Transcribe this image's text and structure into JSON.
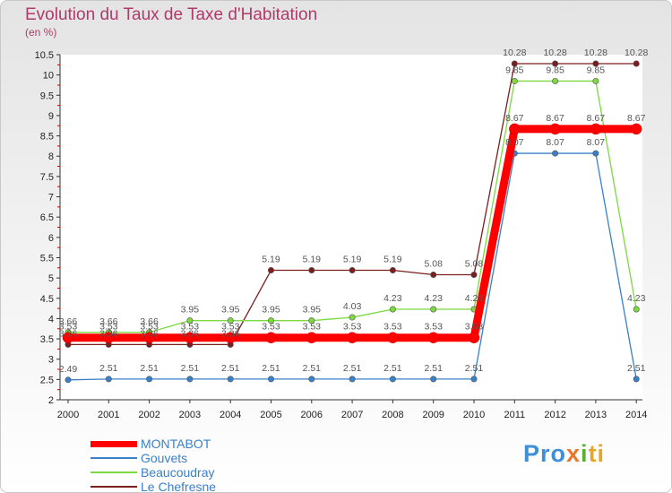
{
  "title": "Evolution du Taux de Taxe d'Habitation",
  "unit_label": "(en %)",
  "logo": {
    "text": "Proxiti"
  },
  "chart_data": {
    "type": "line",
    "x": [
      2000,
      2001,
      2002,
      2003,
      2004,
      2005,
      2006,
      2007,
      2008,
      2009,
      2010,
      2011,
      2012,
      2013,
      2014
    ],
    "ylim": [
      2,
      10.5
    ],
    "yticks": [
      2,
      2.5,
      3,
      3.5,
      4,
      4.5,
      5,
      5.5,
      6,
      6.5,
      7,
      7.5,
      8,
      8.5,
      9,
      9.5,
      10,
      10.5
    ],
    "grid": false,
    "legend_position": "bottom-left",
    "series": [
      {
        "name": "MONTABOT",
        "color": "#ff0000",
        "values": [
          3.53,
          3.53,
          3.53,
          3.53,
          3.53,
          3.53,
          3.53,
          3.53,
          3.53,
          3.53,
          3.53,
          8.67,
          8.67,
          8.67,
          8.67
        ]
      },
      {
        "name": "Gouvets",
        "color": "#3a80c8",
        "values": [
          2.49,
          2.51,
          2.51,
          2.51,
          2.51,
          2.51,
          2.51,
          2.51,
          2.51,
          2.51,
          2.51,
          8.07,
          8.07,
          8.07,
          2.51
        ]
      },
      {
        "name": "Beaucoudray",
        "color": "#7cd940",
        "values": [
          3.66,
          3.66,
          3.66,
          3.95,
          3.95,
          3.95,
          3.95,
          4.03,
          4.23,
          4.23,
          4.23,
          9.85,
          9.85,
          9.85,
          4.23
        ]
      },
      {
        "name": "Le Chefresne",
        "color": "#7a1e1e",
        "values": [
          3.36,
          3.36,
          3.36,
          3.36,
          3.36,
          5.19,
          5.19,
          5.19,
          5.19,
          5.08,
          5.08,
          10.28,
          10.28,
          10.28,
          10.28
        ]
      }
    ]
  }
}
